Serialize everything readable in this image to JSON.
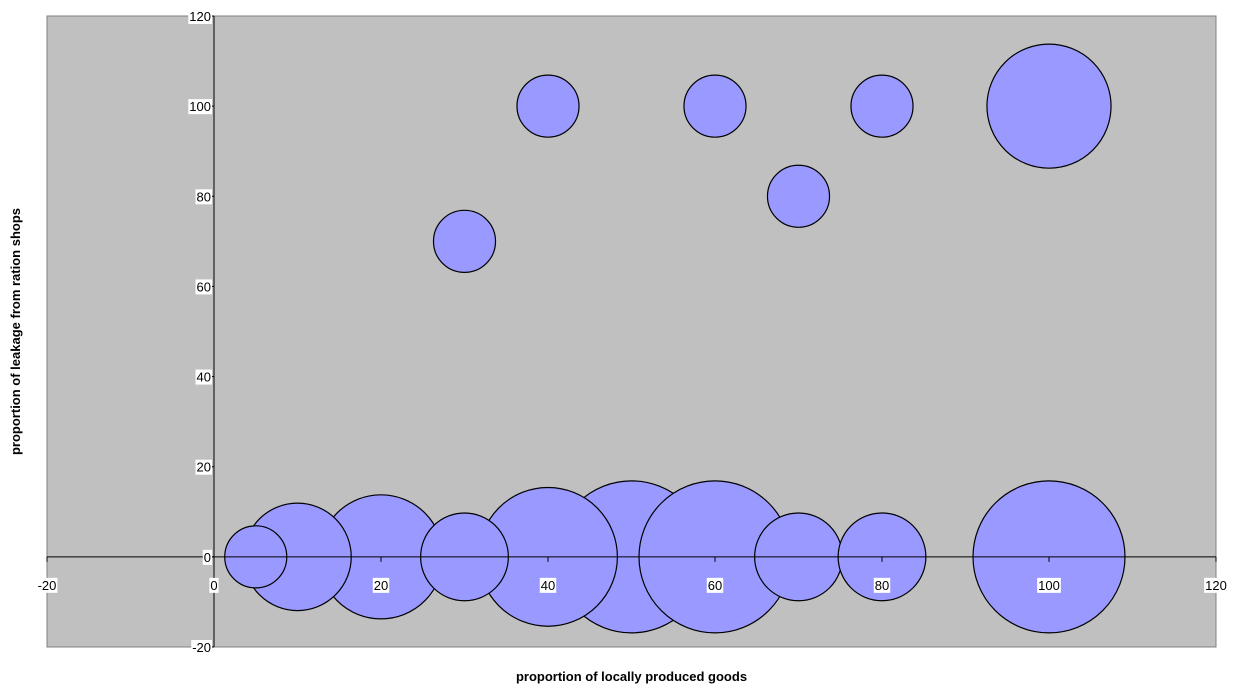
{
  "chart_data": {
    "type": "scatter",
    "subtype": "bubble",
    "title": "",
    "xlabel": "proportion of locally produced goods",
    "ylabel": "proportion of leakage from ration shops",
    "xlim": [
      -20,
      120
    ],
    "ylim": [
      -20,
      120
    ],
    "x_ticks": [
      -20,
      0,
      20,
      40,
      60,
      80,
      100,
      120
    ],
    "y_ticks": [
      -20,
      0,
      20,
      40,
      60,
      80,
      100,
      120
    ],
    "grid": false,
    "legend": false,
    "plot_background": "#c0c0c0",
    "bubble_color": "#9999ff",
    "series": [
      {
        "points": [
          {
            "x": 5,
            "y": 0,
            "size": 1
          },
          {
            "x": 10,
            "y": 0,
            "size": 3
          },
          {
            "x": 20,
            "y": 0,
            "size": 4
          },
          {
            "x": 30,
            "y": 0,
            "size": 2
          },
          {
            "x": 40,
            "y": 0,
            "size": 5
          },
          {
            "x": 50,
            "y": 0,
            "size": 6
          },
          {
            "x": 60,
            "y": 0,
            "size": 6
          },
          {
            "x": 70,
            "y": 0,
            "size": 2
          },
          {
            "x": 80,
            "y": 0,
            "size": 2
          },
          {
            "x": 100,
            "y": 0,
            "size": 6
          },
          {
            "x": 30,
            "y": 70,
            "size": 1
          },
          {
            "x": 40,
            "y": 100,
            "size": 1
          },
          {
            "x": 60,
            "y": 100,
            "size": 1
          },
          {
            "x": 70,
            "y": 80,
            "size": 1
          },
          {
            "x": 80,
            "y": 100,
            "size": 1
          },
          {
            "x": 100,
            "y": 100,
            "size": 4
          }
        ]
      }
    ]
  }
}
